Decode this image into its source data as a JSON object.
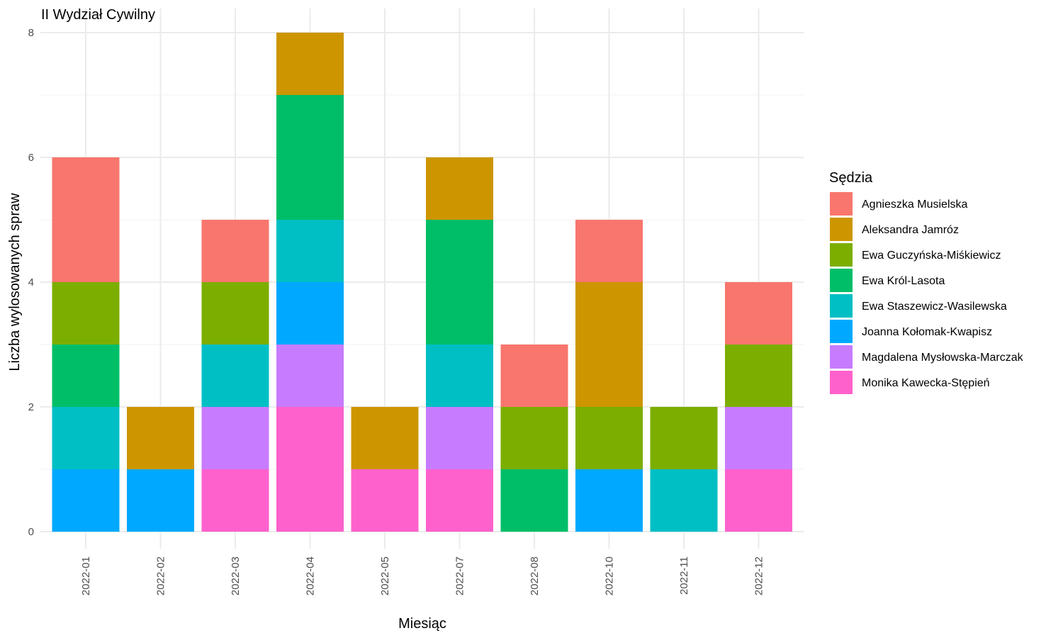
{
  "chart_data": {
    "type": "bar",
    "stacked": true,
    "title": "II Wydział Cywilny",
    "xlabel": "Miesiąc",
    "ylabel": "Liczba wylosowanych spraw",
    "ylim": [
      0,
      8
    ],
    "yticks": [
      "0",
      "2",
      "4",
      "6",
      "8"
    ],
    "grid": true,
    "legend": {
      "title": "Sędzia",
      "position": "right"
    },
    "categories": [
      "2022-01",
      "2022-02",
      "2022-03",
      "2022-04",
      "2022-05",
      "2022-07",
      "2022-08",
      "2022-10",
      "2022-11",
      "2022-12"
    ],
    "series": [
      {
        "name": "Monika Kawecka-Stępień",
        "color": "#FF61CC",
        "values": [
          0,
          0,
          1,
          2,
          1,
          1,
          0,
          0,
          0,
          1
        ]
      },
      {
        "name": "Magdalena Mysłowska-Marczak",
        "color": "#C77CFF",
        "values": [
          0,
          0,
          1,
          1,
          0,
          1,
          0,
          0,
          0,
          1
        ]
      },
      {
        "name": "Joanna Kołomak-Kwapisz",
        "color": "#00A9FF",
        "values": [
          1,
          1,
          0,
          1,
          0,
          0,
          0,
          1,
          0,
          0
        ]
      },
      {
        "name": "Ewa Staszewicz-Wasilewska",
        "color": "#00BFC4",
        "values": [
          1,
          0,
          1,
          1,
          0,
          1,
          0,
          0,
          1,
          0
        ]
      },
      {
        "name": "Ewa Król-Lasota",
        "color": "#00BE67",
        "values": [
          1,
          0,
          0,
          2,
          0,
          2,
          1,
          0,
          0,
          0
        ]
      },
      {
        "name": "Ewa Guczyńska-Miśkiewicz",
        "color": "#7CAE00",
        "values": [
          1,
          0,
          1,
          0,
          0,
          0,
          1,
          1,
          1,
          1
        ]
      },
      {
        "name": "Aleksandra Jamróz",
        "color": "#CD9600",
        "values": [
          0,
          1,
          0,
          1,
          1,
          1,
          0,
          2,
          0,
          0
        ]
      },
      {
        "name": "Agnieszka Musielska",
        "color": "#F8766D",
        "values": [
          2,
          0,
          1,
          0,
          0,
          0,
          1,
          1,
          0,
          1
        ]
      }
    ],
    "legend_order": [
      "Agnieszka Musielska",
      "Aleksandra Jamróz",
      "Ewa Guczyńska-Miśkiewicz",
      "Ewa Król-Lasota",
      "Ewa Staszewicz-Wasilewska",
      "Joanna Kołomak-Kwapisz",
      "Magdalena Mysłowska-Marczak",
      "Monika Kawecka-Stępień"
    ]
  }
}
